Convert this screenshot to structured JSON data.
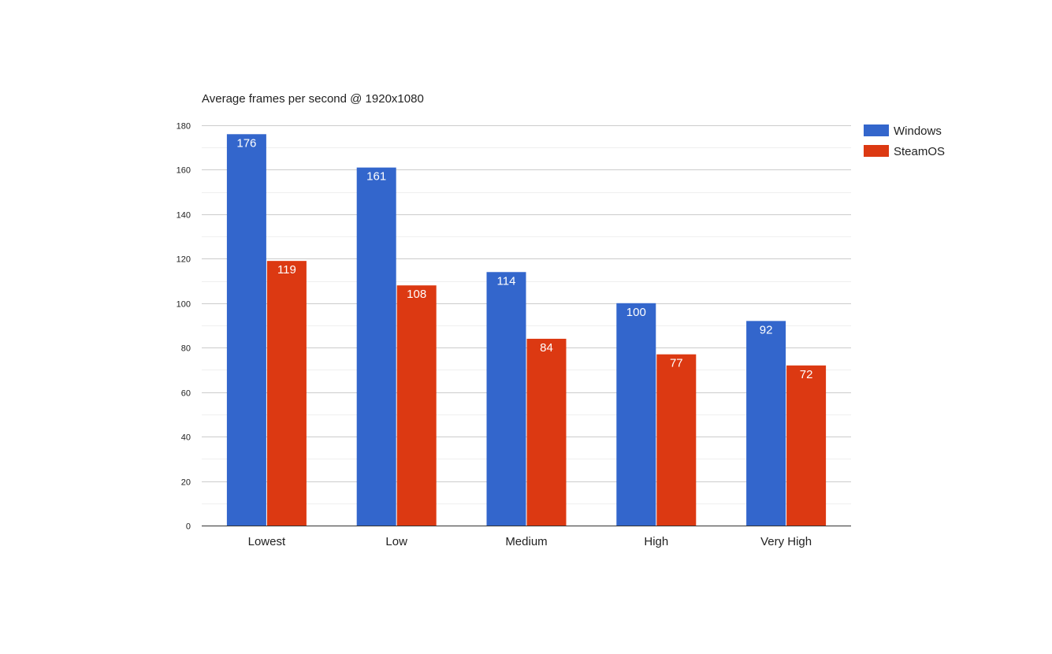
{
  "chart_data": {
    "type": "bar",
    "title": "Average frames per second @ 1920x1080",
    "xlabel": "",
    "ylabel": "",
    "categories": [
      "Lowest",
      "Low",
      "Medium",
      "High",
      "Very High"
    ],
    "series": [
      {
        "name": "Windows",
        "color": "#3366cc",
        "values": [
          176,
          161,
          114,
          100,
          92
        ]
      },
      {
        "name": "SteamOS",
        "color": "#dc3912",
        "values": [
          119,
          108,
          84,
          77,
          72
        ]
      }
    ],
    "ylim": [
      0,
      180
    ],
    "yticks": [
      0,
      20,
      40,
      60,
      80,
      100,
      120,
      140,
      160,
      180
    ],
    "grid": true,
    "data_labels": true,
    "legend": "right"
  }
}
